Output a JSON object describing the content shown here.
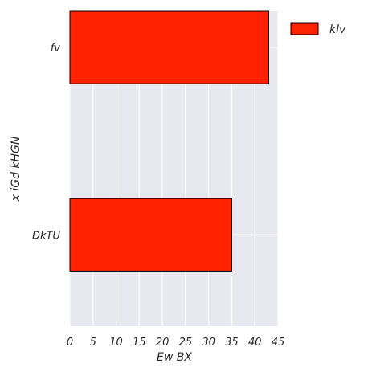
{
  "chart_data": {
    "type": "bar",
    "orientation": "horizontal",
    "categories": [
      "fv",
      "DkTU"
    ],
    "series": [
      {
        "name": "klv",
        "values": [
          43,
          35
        ],
        "color": "#ff2200"
      }
    ],
    "xlabel": "Ew  BX",
    "ylabel": "x iGd kHGN",
    "xlim": [
      0,
      45
    ],
    "xticks": [
      0,
      5,
      10,
      15,
      20,
      25,
      30,
      35,
      40,
      45
    ],
    "grid": true,
    "legend": "outside-top-right",
    "plot_background": "#e8e8f0",
    "grid_color": "#ffffff"
  }
}
